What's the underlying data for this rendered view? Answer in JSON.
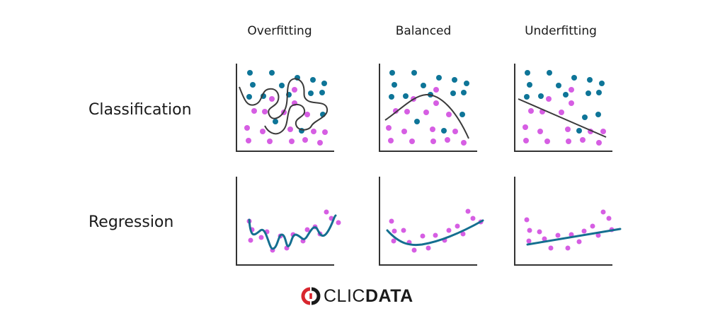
{
  "columns": [
    "Overfitting",
    "Balanced",
    "Underfitting"
  ],
  "rows": [
    "Classification",
    "Regression"
  ],
  "colors": {
    "class_a": "#0e7598",
    "class_b": "#d65ee3",
    "boundary": "#3a3a3a",
    "regression_line": "#146f90",
    "axis": "#333333",
    "logo_red": "#d8262e",
    "logo_dark": "#1a1a1a"
  },
  "logo": {
    "text_regular": "CLIC",
    "text_bold": "DATA"
  }
}
